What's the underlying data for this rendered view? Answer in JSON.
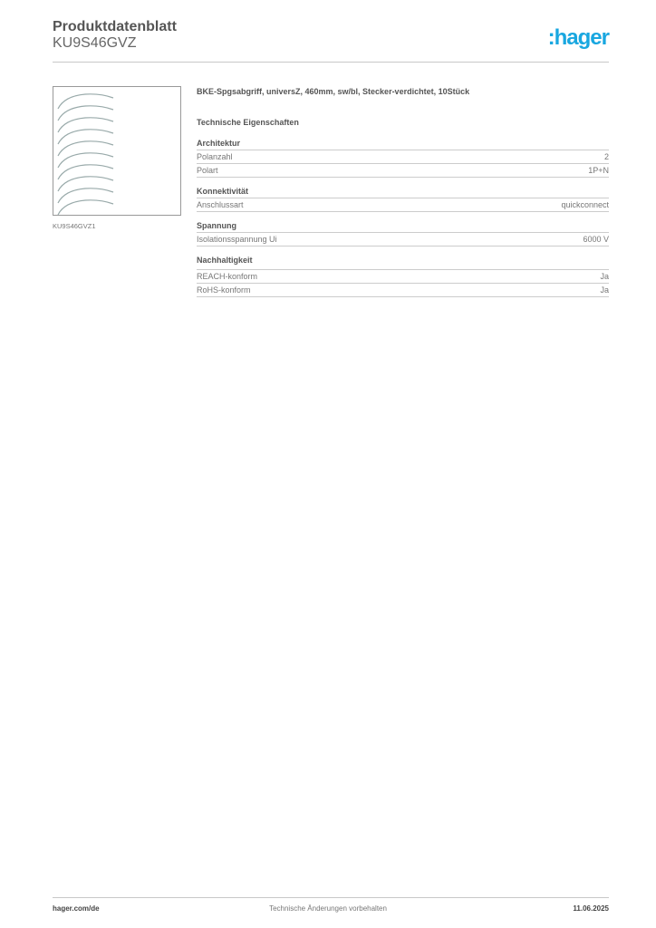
{
  "header": {
    "title": "Produktdatenblatt",
    "article": "KU9S46GVZ",
    "logo_text": ":hager",
    "brand_color": "#19a7e0"
  },
  "image": {
    "caption": "KU9S46GVZ1",
    "icon": "cable-set-image"
  },
  "product": {
    "name": "BKE-Spgsabgriff, universZ, 460mm, sw/bl, Stecker-verdichtet, 10Stück"
  },
  "tech_heading": "Technische Eigenschaften",
  "sections": [
    {
      "title": "Architektur",
      "rows": [
        {
          "label": "Polanzahl",
          "value": "2"
        },
        {
          "label": "Polart",
          "value": "1P+N"
        }
      ]
    },
    {
      "title": "Konnektivität",
      "rows": [
        {
          "label": "Anschlussart",
          "value": "quickconnect"
        }
      ]
    },
    {
      "title": "Spannung",
      "rows": [
        {
          "label": "Isolationsspannung Ui",
          "value": "6000 V"
        }
      ]
    },
    {
      "title": "Nachhaltigkeit",
      "rows": [
        {
          "label": "REACH-konform",
          "value": "Ja"
        },
        {
          "label": "RoHS-konform",
          "value": "Ja"
        }
      ]
    }
  ],
  "footer": {
    "website": "hager.com/de",
    "note": "Technische Änderungen vorbehalten",
    "date": "11.06.2025"
  }
}
